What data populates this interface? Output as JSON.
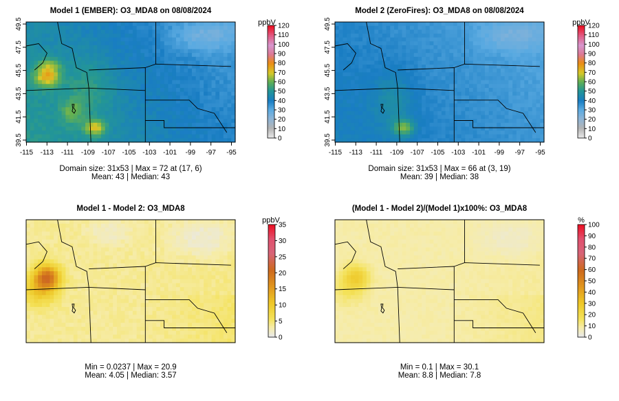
{
  "chart_data": [
    {
      "type": "heatmap",
      "title": "Model 1 (EMBER): O3_MDA8 on 08/08/2024",
      "x_ticks": [
        "-115",
        "-113",
        "-111",
        "-109",
        "-107",
        "-105",
        "-103",
        "-101",
        "-99",
        "-97",
        "-95"
      ],
      "y_ticks": [
        "39.5",
        "41.5",
        "43.5",
        "45.5",
        "47.5",
        "49.5"
      ],
      "xlim": [
        -115.3,
        -95.2
      ],
      "ylim": [
        39.4,
        49.7
      ],
      "colorbar": {
        "unit": "ppbV",
        "ticks": [
          "0",
          "10",
          "20",
          "30",
          "40",
          "50",
          "60",
          "70",
          "80",
          "90",
          "100",
          "110",
          "120"
        ],
        "range": [
          0,
          120
        ]
      },
      "palette": "ozone",
      "stats": {
        "line1": "Domain size: 31x53 | Max = 72 at (17, 6)",
        "line2": "Mean: 43 |  Median: 43"
      }
    },
    {
      "type": "heatmap",
      "title": "Model 2 (ZeroFires): O3_MDA8 on 08/08/2024",
      "x_ticks": [
        "-115",
        "-113",
        "-111",
        "-109",
        "-107",
        "-105",
        "-103",
        "-101",
        "-99",
        "-97",
        "-95"
      ],
      "y_ticks": [
        "39.5",
        "41.5",
        "43.5",
        "45.5",
        "47.5",
        "49.5"
      ],
      "xlim": [
        -115.3,
        -95.2
      ],
      "ylim": [
        39.4,
        49.7
      ],
      "colorbar": {
        "unit": "ppbV",
        "ticks": [
          "0",
          "10",
          "20",
          "30",
          "40",
          "50",
          "60",
          "70",
          "80",
          "90",
          "100",
          "110",
          "120"
        ],
        "range": [
          0,
          120
        ]
      },
      "palette": "ozone",
      "stats": {
        "line1": "Domain size: 31x53 | Max = 66 at (3, 19)",
        "line2": "Mean: 39 |  Median: 38"
      }
    },
    {
      "type": "heatmap",
      "title": "Model 1 - Model 2: O3_MDA8",
      "x_ticks": [],
      "y_ticks": [],
      "colorbar": {
        "unit": "ppbV",
        "ticks": [
          "0",
          "5",
          "10",
          "15",
          "20",
          "25",
          "30",
          "35"
        ],
        "range": [
          0,
          35
        ]
      },
      "palette": "difference",
      "stats": {
        "line1": "Min = 0.0237 | Max = 20.9",
        "line2": "Mean: 4.05 |  Median: 3.57"
      }
    },
    {
      "type": "heatmap",
      "title": "(Model 1 - Model 2)/(Model 1)x100%: O3_MDA8",
      "x_ticks": [],
      "y_ticks": [],
      "colorbar": {
        "unit": "%",
        "ticks": [
          "0",
          "10",
          "20",
          "30",
          "40",
          "50",
          "60",
          "70",
          "80",
          "90",
          "100"
        ],
        "range": [
          0,
          100
        ]
      },
      "palette": "difference",
      "stats": {
        "line1": "Min = 0.1 | Max = 30.1",
        "line2": "Mean: 8.8 |  Median: 7.8"
      }
    }
  ]
}
